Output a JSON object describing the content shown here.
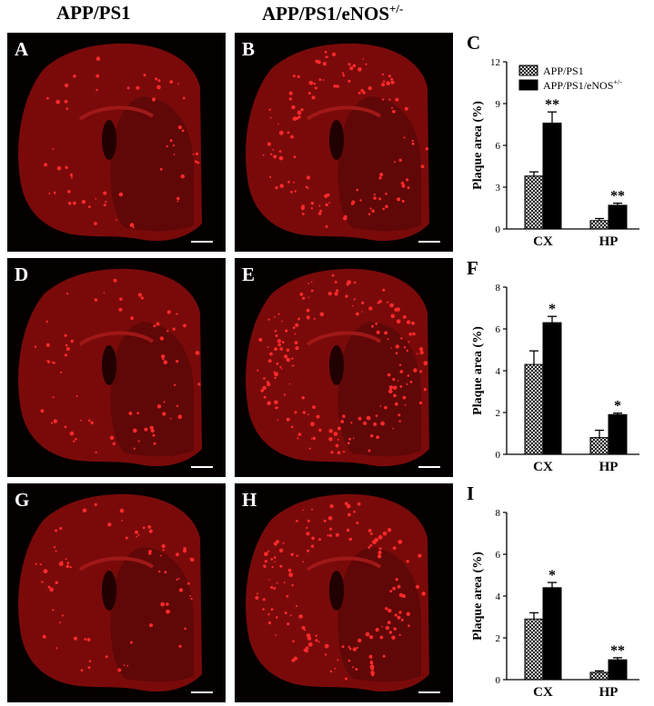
{
  "headers": {
    "col1": "APP/PS1",
    "col2_base": "APP/PS1/eNOS",
    "col2_sup": "+/-"
  },
  "micrographs": [
    {
      "letter": "A",
      "genotype": "APP/PS1"
    },
    {
      "letter": "B",
      "genotype": "APP/PS1/eNOS+/-"
    },
    {
      "letter": "D",
      "genotype": "APP/PS1"
    },
    {
      "letter": "E",
      "genotype": "APP/PS1/eNOS+/-"
    },
    {
      "letter": "G",
      "genotype": "APP/PS1"
    },
    {
      "letter": "H",
      "genotype": "APP/PS1/eNOS+/-"
    }
  ],
  "colors": {
    "tissue": "#7a0a0a",
    "tissue_dark": "#4a0505",
    "plaque": "#ff2a2a",
    "background": "#050000",
    "bar_wt": "#ffffff",
    "bar_ko": "#000000"
  },
  "legend": {
    "wt": "APP/PS1",
    "ko_base": "APP/PS1/eNOS",
    "ko_sup": "+/-"
  },
  "chart_data": [
    {
      "letter": "C",
      "type": "bar",
      "categories": [
        "CX",
        "HP"
      ],
      "ylabel": "Plaque area (%)",
      "ylim": [
        0,
        12
      ],
      "yticks": [
        0,
        3,
        6,
        9,
        12
      ],
      "legend": "top-left",
      "series": [
        {
          "name": "APP/PS1",
          "values": [
            3.8,
            0.6
          ],
          "errors": [
            0.3,
            0.15
          ]
        },
        {
          "name": "APP/PS1/eNOS+/-",
          "values": [
            7.6,
            1.7
          ],
          "errors": [
            0.8,
            0.15
          ]
        }
      ],
      "significance": [
        "**",
        "**"
      ]
    },
    {
      "letter": "F",
      "type": "bar",
      "categories": [
        "CX",
        "HP"
      ],
      "ylabel": "Plaque area (%)",
      "ylim": [
        0,
        8
      ],
      "yticks": [
        0,
        2,
        4,
        6,
        8
      ],
      "series": [
        {
          "name": "APP/PS1",
          "values": [
            4.3,
            0.8
          ],
          "errors": [
            0.65,
            0.35
          ]
        },
        {
          "name": "APP/PS1/eNOS+/-",
          "values": [
            6.3,
            1.9
          ],
          "errors": [
            0.3,
            0.07
          ]
        }
      ],
      "significance": [
        "*",
        "*"
      ]
    },
    {
      "letter": "I",
      "type": "bar",
      "categories": [
        "CX",
        "HP"
      ],
      "ylabel": "Plaque area (%)",
      "ylim": [
        0,
        8
      ],
      "yticks": [
        0,
        2,
        4,
        6,
        8
      ],
      "series": [
        {
          "name": "APP/PS1",
          "values": [
            2.9,
            0.35
          ],
          "errors": [
            0.3,
            0.07
          ]
        },
        {
          "name": "APP/PS1/eNOS+/-",
          "values": [
            4.4,
            0.95
          ],
          "errors": [
            0.25,
            0.1
          ]
        }
      ],
      "significance": [
        "*",
        "**"
      ]
    }
  ]
}
